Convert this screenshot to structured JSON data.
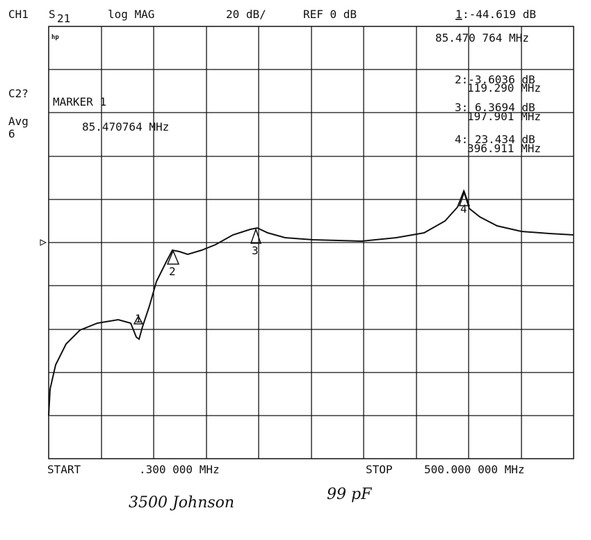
{
  "header": {
    "channel": "CH1",
    "param": "S",
    "param_sub": "21",
    "format": "log MAG",
    "scale": "20 dB/",
    "ref": "REF 0 dB",
    "active_marker_num": "1",
    "active_marker_value": ":-44.619 dB",
    "active_marker_freq": "85.470 764 MHz"
  },
  "markers": [
    {
      "value": "2:-3.6036 dB",
      "freq": "119.290 MHz"
    },
    {
      "value": "3: 6.3694 dB",
      "freq": "197.901 MHz"
    },
    {
      "value": "4: 23.434 dB",
      "freq": "396.911 MHz"
    }
  ],
  "side": {
    "c2": "C2?",
    "avg": "Avg",
    "avg_n": "6"
  },
  "logo": "hp",
  "marker_box": {
    "title": "MARKER 1",
    "freq": "85.470764 MHz"
  },
  "trace_labels": [
    "1",
    "2",
    "3",
    "4"
  ],
  "footer": {
    "start": "START",
    "start_freq": ".300 000 MHz",
    "stop": "STOP",
    "stop_freq": "500.000 000 MHz"
  },
  "handwriting": {
    "note": "3500 Johnson",
    "cap": "99 pF"
  }
}
